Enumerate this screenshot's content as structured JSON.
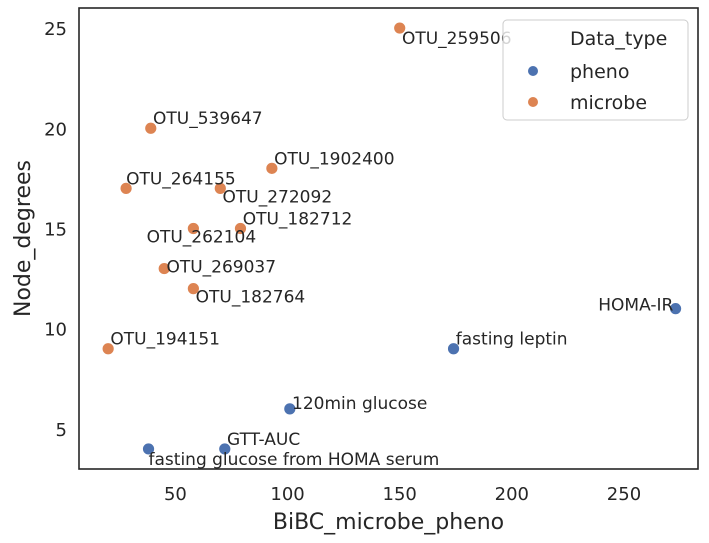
{
  "chart_data": {
    "type": "scatter",
    "xlabel": "BiBC_microbe_pheno",
    "ylabel": "Node_degrees",
    "xlim": [
      7,
      283
    ],
    "ylim": [
      3,
      26
    ],
    "xticks": [
      50,
      100,
      150,
      200,
      250
    ],
    "yticks": [
      5,
      10,
      15,
      20,
      25
    ],
    "grid": false,
    "legend": {
      "title": "Data_type",
      "placement": "top-right",
      "entries": [
        {
          "name": "pheno",
          "color": "#4c72b0"
        },
        {
          "name": "microbe",
          "color": "#dd8452"
        }
      ]
    },
    "points": [
      {
        "label": "OTU_259506",
        "x": 150,
        "y": 25,
        "type": "microbe",
        "anchor": "start",
        "dx": 1,
        "dy": -0.5
      },
      {
        "label": "OTU_539647",
        "x": 39,
        "y": 20,
        "type": "microbe",
        "anchor": "start",
        "dx": 1,
        "dy": 0.5
      },
      {
        "label": "OTU_1902400",
        "x": 93,
        "y": 18,
        "type": "microbe",
        "anchor": "start",
        "dx": 1,
        "dy": 0.5
      },
      {
        "label": "OTU_264155",
        "x": 28,
        "y": 17,
        "type": "microbe",
        "anchor": "start",
        "dx": 0,
        "dy": 0.5
      },
      {
        "label": "OTU_272092",
        "x": 70,
        "y": 17,
        "type": "microbe",
        "anchor": "start",
        "dx": 1,
        "dy": -0.4
      },
      {
        "label": "OTU_182712",
        "x": 79,
        "y": 15,
        "type": "microbe",
        "anchor": "start",
        "dx": 1,
        "dy": 0.5
      },
      {
        "label": "OTU_262104",
        "x": 58,
        "y": 15,
        "type": "microbe",
        "anchor": "end",
        "dx": 28,
        "dy": -0.4
      },
      {
        "label": "OTU_269037",
        "x": 45,
        "y": 13,
        "type": "microbe",
        "anchor": "start",
        "dx": 1,
        "dy": 0.1
      },
      {
        "label": "OTU_182764",
        "x": 58,
        "y": 12,
        "type": "microbe",
        "anchor": "start",
        "dx": 1,
        "dy": -0.4
      },
      {
        "label": "OTU_194151",
        "x": 20,
        "y": 9,
        "type": "microbe",
        "anchor": "start",
        "dx": 1,
        "dy": 0.5
      },
      {
        "label": "HOMA-IR",
        "x": 273,
        "y": 11,
        "type": "pheno",
        "anchor": "end",
        "dx": -1,
        "dy": 0.2
      },
      {
        "label": "fasting leptin",
        "x": 174,
        "y": 9,
        "type": "pheno",
        "anchor": "start",
        "dx": 1,
        "dy": 0.5
      },
      {
        "label": "120min glucose",
        "x": 101,
        "y": 6,
        "type": "pheno",
        "anchor": "start",
        "dx": 1,
        "dy": 0.3
      },
      {
        "label": "GTT-AUC",
        "x": 72,
        "y": 4,
        "type": "pheno",
        "anchor": "start",
        "dx": 1,
        "dy": 0.5
      },
      {
        "label": "fasting glucose from HOMA serum",
        "x": 38,
        "y": 4,
        "type": "pheno",
        "anchor": "start",
        "dx": 0,
        "dy": -0.5
      }
    ]
  }
}
